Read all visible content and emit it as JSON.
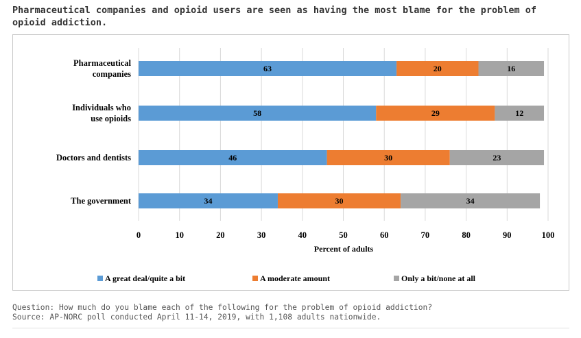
{
  "title": "Pharmaceutical companies and opioid users are seen as having the most blame for the problem of opioid addiction.",
  "question": "Question: How much do you blame each of the following for the problem of opioid addiction?",
  "source": "Source: AP-NORC poll conducted April 11-14, 2019, with 1,108 adults nationwide.",
  "chart_data": {
    "type": "bar",
    "orientation": "horizontal",
    "stacked": true,
    "categories": [
      [
        "Pharmaceutical",
        "companies"
      ],
      [
        "Individuals who",
        "use opioids"
      ],
      [
        "Doctors and dentists"
      ],
      [
        "The government"
      ]
    ],
    "series": [
      {
        "name": "A great deal/quite a bit",
        "color": "#5B9BD5",
        "values": [
          63,
          58,
          46,
          34
        ]
      },
      {
        "name": "A moderate amount",
        "color": "#ED7D31",
        "values": [
          20,
          29,
          30,
          30
        ]
      },
      {
        "name": "Only a bit/none at all",
        "color": "#A5A5A5",
        "values": [
          16,
          12,
          23,
          34
        ]
      }
    ],
    "xlabel": "Percent of adults",
    "xlim": [
      0,
      100
    ],
    "xticks": [
      0,
      10,
      20,
      30,
      40,
      50,
      60,
      70,
      80,
      90,
      100
    ],
    "grid": true,
    "legend": "bottom"
  }
}
